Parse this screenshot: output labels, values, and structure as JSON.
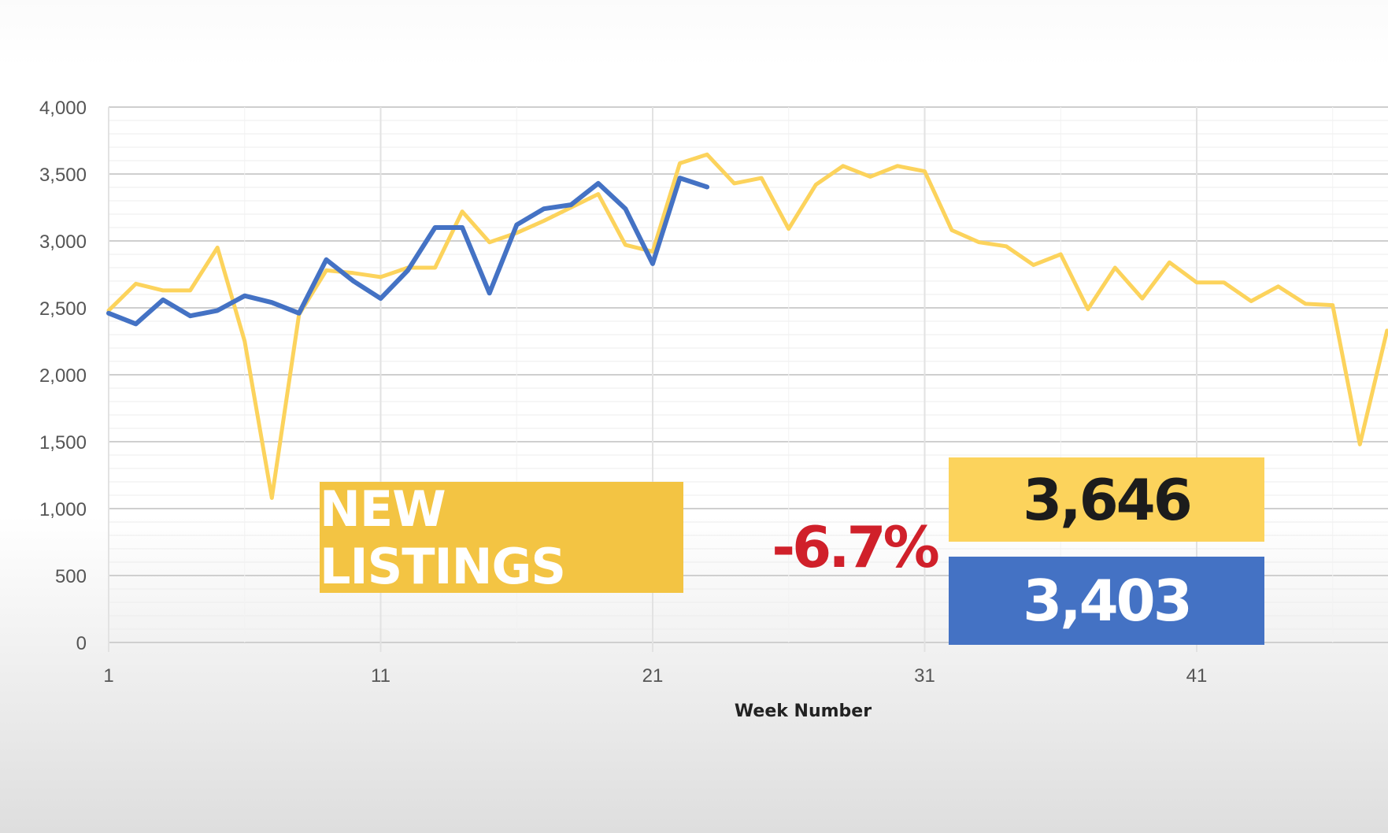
{
  "chart_data": {
    "type": "line",
    "xlabel": "Week Number",
    "ylabel": "",
    "ylim": [
      0,
      4000
    ],
    "y_ticks": [
      "0",
      "500",
      "1,000",
      "1,500",
      "2,000",
      "2,500",
      "3,000",
      "3,500",
      "4,000"
    ],
    "x_ticks": [
      "1",
      "11",
      "21",
      "31",
      "41"
    ],
    "grid": true,
    "series": [
      {
        "color": "#fcd35c",
        "x": [
          1,
          2,
          3,
          4,
          5,
          6,
          7,
          8,
          9,
          10,
          11,
          12,
          13,
          14,
          15,
          16,
          17,
          18,
          19,
          20,
          21,
          22,
          23,
          24,
          25,
          26,
          27,
          28,
          29,
          30,
          31,
          32,
          33,
          34,
          35,
          36,
          37,
          38,
          39,
          40,
          41,
          42,
          43,
          44,
          45,
          46,
          47,
          48
        ],
        "values": [
          2480,
          2680,
          2630,
          2630,
          2950,
          2250,
          1080,
          2450,
          2780,
          2760,
          2730,
          2800,
          2800,
          3220,
          2990,
          3060,
          3150,
          3250,
          3350,
          2970,
          2920,
          3580,
          3646,
          3430,
          3470,
          3090,
          3420,
          3560,
          3480,
          3560,
          3520,
          3080,
          2990,
          2960,
          2820,
          2900,
          2490,
          2800,
          2570,
          2840,
          2690,
          2690,
          2550,
          2660,
          2530,
          2520,
          1480,
          2330
        ]
      },
      {
        "color": "#4472c4",
        "x": [
          1,
          2,
          3,
          4,
          5,
          6,
          7,
          8,
          9,
          10,
          11,
          12,
          13,
          14,
          15,
          16,
          17,
          18,
          19,
          20,
          21,
          22,
          23
        ],
        "values": [
          2460,
          2380,
          2560,
          2440,
          2480,
          2590,
          2540,
          2460,
          2860,
          2700,
          2570,
          2780,
          3100,
          3100,
          2610,
          3120,
          3240,
          3270,
          3430,
          3240,
          2830,
          3470,
          3403
        ]
      }
    ]
  },
  "overlay": {
    "title": "NEW LISTINGS",
    "change": "-6.7%",
    "previous_value": "3,646",
    "current_value": "3,403"
  }
}
